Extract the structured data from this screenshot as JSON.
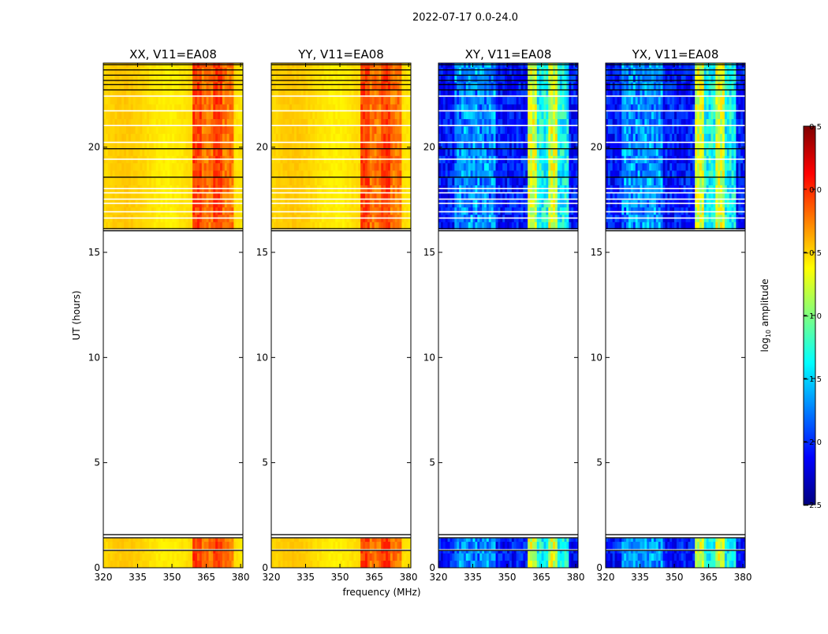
{
  "figure": {
    "suptitle": "2022-07-17 0.0-24.0",
    "xlabel": "frequency (MHz)",
    "ylabel": "UT (hours)"
  },
  "colorbar": {
    "label_prefix": "log",
    "label_sub": "10",
    "label_suffix": " amplitude",
    "range": [
      -2.5,
      0.5
    ],
    "ticks": [
      0.5,
      0.0,
      -0.5,
      -1.0,
      -1.5,
      -2.0,
      -2.5
    ],
    "tick_labels": [
      "0.5",
      "0.0",
      "−0.5",
      "−1.0",
      "−1.5",
      "−2.0",
      "−2.5"
    ],
    "colormap": "jet",
    "stops": [
      "#00007f",
      "#0000ff",
      "#007fff",
      "#00ffff",
      "#7fff7f",
      "#ffff00",
      "#ff7f00",
      "#ff0000",
      "#7f0000"
    ]
  },
  "chart_data": [
    {
      "type": "heatmap",
      "title": "XX, V11=EA08",
      "level": "high",
      "xlim": [
        320,
        381
      ],
      "ylim": [
        0,
        24
      ],
      "xticks": [
        320,
        335,
        350,
        365,
        380
      ],
      "yticks": [
        0,
        5,
        10,
        15,
        20
      ],
      "rfi_band_mhz": [
        359,
        377
      ],
      "data_time_ranges_hours": [
        [
          0,
          0.8
        ],
        [
          0.9,
          1.4
        ],
        [
          16.1,
          24
        ]
      ],
      "blank_range_hours": [
        1.6,
        16.1
      ]
    },
    {
      "type": "heatmap",
      "title": "YY, V11=EA08",
      "level": "high",
      "xlim": [
        320,
        381
      ],
      "ylim": [
        0,
        24
      ],
      "xticks": [
        320,
        335,
        350,
        365,
        380
      ],
      "yticks": [
        0,
        5,
        10,
        15,
        20
      ],
      "rfi_band_mhz": [
        359,
        377
      ],
      "data_time_ranges_hours": [
        [
          0,
          0.8
        ],
        [
          0.9,
          1.4
        ],
        [
          16.1,
          24
        ]
      ],
      "blank_range_hours": [
        1.6,
        16.1
      ]
    },
    {
      "type": "heatmap",
      "title": "XY, V11=EA08",
      "level": "low",
      "xlim": [
        320,
        381
      ],
      "ylim": [
        0,
        24
      ],
      "xticks": [
        320,
        335,
        350,
        365,
        380
      ],
      "yticks": [
        0,
        5,
        10,
        15,
        20
      ],
      "rfi_band_mhz": [
        359,
        377
      ],
      "data_time_ranges_hours": [
        [
          0,
          0.8
        ],
        [
          0.9,
          1.4
        ],
        [
          16.1,
          24
        ]
      ],
      "blank_range_hours": [
        1.6,
        16.1
      ]
    },
    {
      "type": "heatmap",
      "title": "YX, V11=EA08",
      "level": "low",
      "xlim": [
        320,
        381
      ],
      "ylim": [
        0,
        24
      ],
      "xticks": [
        320,
        335,
        350,
        365,
        380
      ],
      "yticks": [
        0,
        5,
        10,
        15,
        20
      ],
      "rfi_band_mhz": [
        359,
        377
      ],
      "data_time_ranges_hours": [
        [
          0,
          0.8
        ],
        [
          0.9,
          1.4
        ],
        [
          16.1,
          24
        ]
      ],
      "blank_range_hours": [
        1.6,
        16.1
      ]
    }
  ]
}
